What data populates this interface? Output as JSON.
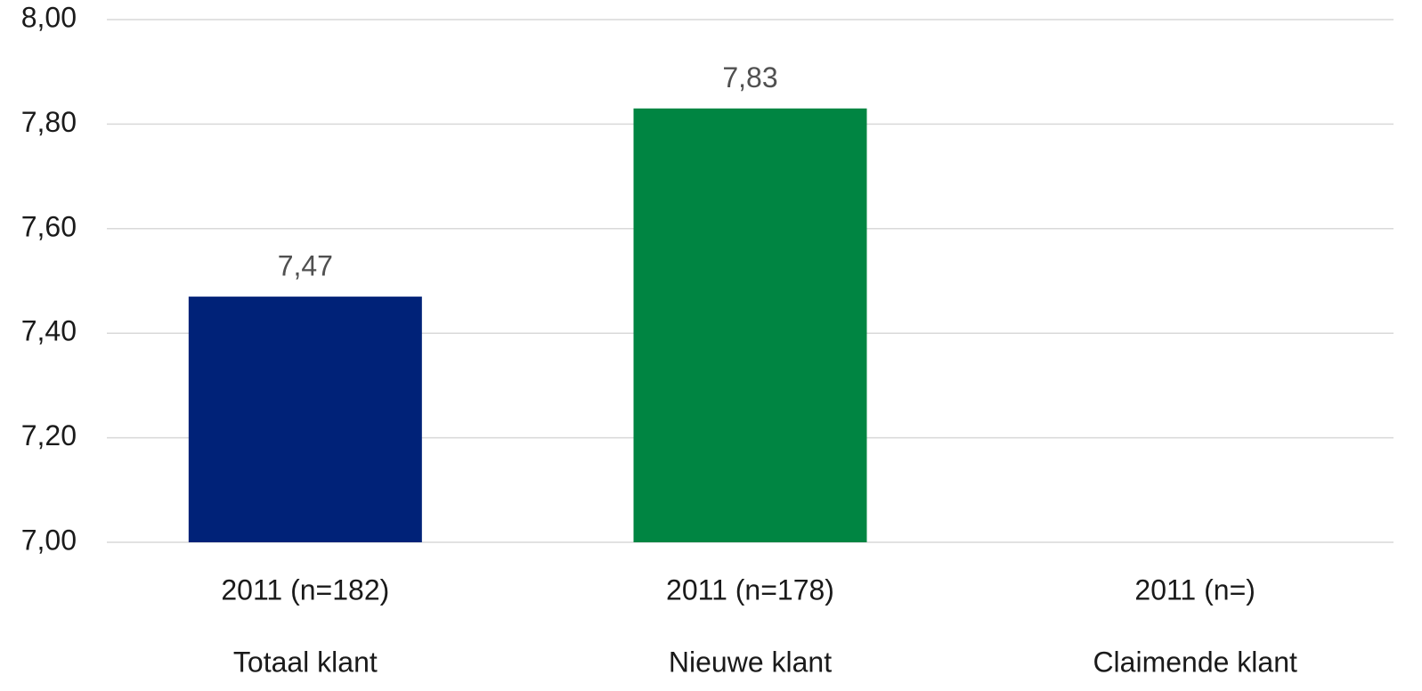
{
  "chart_data": {
    "type": "bar",
    "categories": [
      "2011 (n=182)",
      "2011 (n=178)",
      "2011 (n=)"
    ],
    "groups": [
      "Totaal klant",
      "Nieuwe klant",
      "Claimende klant"
    ],
    "values": [
      7.47,
      7.83,
      null
    ],
    "value_labels": [
      "7,47",
      "7,83",
      null
    ],
    "colors": [
      "#002278",
      "#008542",
      null
    ],
    "ylim": [
      7,
      8
    ],
    "yticks": [
      {
        "value": 7,
        "label": "7,00"
      },
      {
        "value": 7.2,
        "label": "7,20"
      },
      {
        "value": 7.4,
        "label": "7,40"
      },
      {
        "value": 7.6,
        "label": "7,60"
      },
      {
        "value": 7.8,
        "label": "7,80"
      },
      {
        "value": 8,
        "label": "8,00"
      }
    ],
    "grid": true
  }
}
